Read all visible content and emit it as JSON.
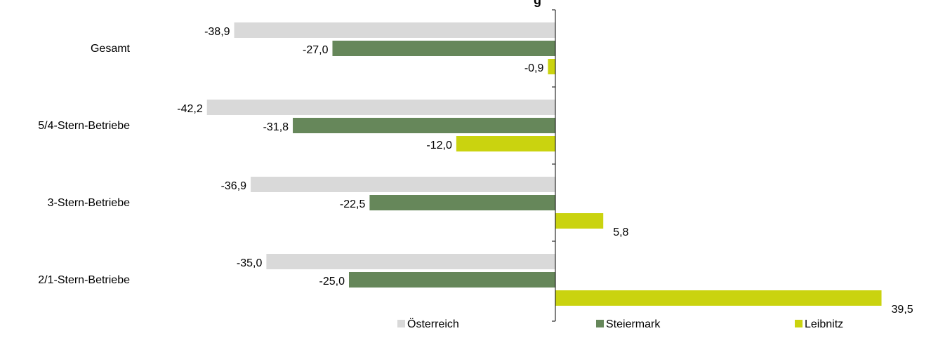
{
  "chart_data": {
    "type": "bar",
    "orientation": "horizontal",
    "title": "g",
    "categories": [
      "Gesamt",
      "5/4-Stern-Betriebe",
      "3-Stern-Betriebe",
      "2/1-Stern-Betriebe"
    ],
    "series": [
      {
        "name": "Österreich",
        "color": "#d9d9d9",
        "values": [
          -38.9,
          -42.2,
          -36.9,
          -35.0
        ],
        "labels": [
          "-38,9",
          "-42,2",
          "-36,9",
          "-35,0"
        ]
      },
      {
        "name": "Steiermark",
        "color": "#66875a",
        "values": [
          -27.0,
          -31.8,
          -22.5,
          -25.0
        ],
        "labels": [
          "-27,0",
          "-31,8",
          "-22,5",
          "-25,0"
        ]
      },
      {
        "name": "Leibnitz",
        "color": "#cad30f",
        "values": [
          -0.9,
          -12.0,
          5.8,
          39.5
        ],
        "labels": [
          "-0,9",
          "-12,0",
          "5,8",
          "39,5"
        ]
      }
    ],
    "xlim": [
      -42.2,
      39.5
    ],
    "grid": false,
    "legend": "bottom"
  }
}
